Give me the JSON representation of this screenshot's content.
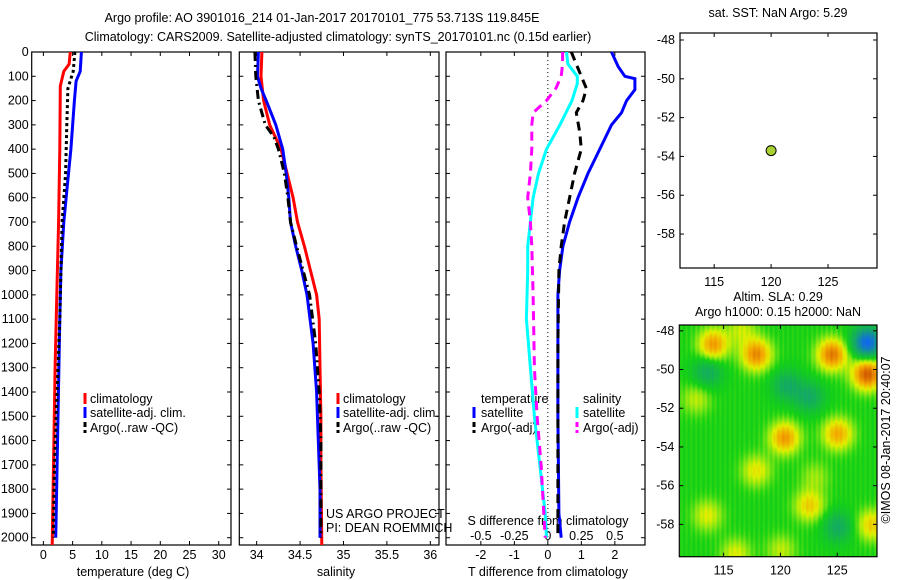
{
  "header": {
    "title_line1": "Argo profile: AO 3901016_214 01-Jan-2017 20170101_775 53.713S 119.845E",
    "title_line2": "Climatology: CARS2009. Satellite-adjusted climatology: synTS_20170101.nc (0.15d earlier)"
  },
  "annotations": {
    "project": "US ARGO PROJECT",
    "pi": "PI: DEAN ROEMMICH",
    "stamp": "©IMOS 08-Jan-2017 20:40:07"
  },
  "colors": {
    "red": "#ff0000",
    "blue": "#0000ff",
    "black": "#000000",
    "cyan": "#00ffff",
    "magenta": "#ff00ff",
    "dot": "#a8d030"
  },
  "chart_data": [
    {
      "type": "line",
      "title": "",
      "xlabel": "temperature (deg C)",
      "ylabel": "",
      "xlim": [
        -2,
        32.1
      ],
      "ylim": [
        0,
        2030
      ],
      "xticks": [
        0,
        5,
        10,
        15,
        20,
        25,
        30
      ],
      "yticks": [
        0,
        100,
        200,
        300,
        400,
        500,
        600,
        700,
        800,
        900,
        1000,
        1100,
        1200,
        1300,
        1400,
        1500,
        1600,
        1700,
        1800,
        1900,
        2000
      ],
      "legend": [
        "climatology",
        "satellite-adj. clim.",
        "Argo(..raw -QC)"
      ],
      "series": [
        {
          "name": "climatology",
          "color": "#ff0000",
          "style": "solid",
          "points": [
            [
              0,
              4.6
            ],
            [
              50,
              4.4
            ],
            [
              80,
              3.5
            ],
            [
              140,
              2.9
            ],
            [
              400,
              2.8
            ],
            [
              700,
              2.6
            ],
            [
              1000,
              2.3
            ],
            [
              1300,
              2.0
            ],
            [
              1600,
              1.8
            ],
            [
              1900,
              1.6
            ],
            [
              2030,
              1.5
            ]
          ]
        },
        {
          "name": "satellite-adj. clim.",
          "color": "#0000ff",
          "style": "solid",
          "points": [
            [
              0,
              6.5
            ],
            [
              80,
              6.3
            ],
            [
              120,
              5.6
            ],
            [
              200,
              5.3
            ],
            [
              400,
              4.7
            ],
            [
              500,
              4.3
            ],
            [
              700,
              3.5
            ],
            [
              900,
              3.0
            ],
            [
              1100,
              2.8
            ],
            [
              1500,
              2.5
            ],
            [
              1900,
              2.2
            ],
            [
              2000,
              2.1
            ]
          ]
        },
        {
          "name": "Argo(..raw -QC)",
          "color": "#000000",
          "style": "dotted",
          "points": [
            [
              0,
              5.4
            ],
            [
              80,
              5.1
            ],
            [
              150,
              4.2
            ],
            [
              300,
              4.0
            ],
            [
              500,
              3.8
            ],
            [
              700,
              3.2
            ],
            [
              900,
              3.0
            ],
            [
              1100,
              2.8
            ],
            [
              1500,
              2.2
            ],
            [
              1700,
              1.9
            ],
            [
              2000,
              1.7
            ]
          ]
        }
      ]
    },
    {
      "type": "line",
      "xlabel": "salinity",
      "xlim": [
        33.8,
        36.1
      ],
      "ylim": [
        0,
        2030
      ],
      "xticks": [
        34,
        34.5,
        35,
        35.5,
        36
      ],
      "legend": [
        "climatology",
        "satellite-adj. clim.",
        "Argo(..raw -QC)"
      ],
      "series": [
        {
          "name": "climatology",
          "color": "#ff0000",
          "style": "solid",
          "points": [
            [
              0,
              34.06
            ],
            [
              100,
              34.05
            ],
            [
              200,
              34.08
            ],
            [
              300,
              34.15
            ],
            [
              400,
              34.28
            ],
            [
              500,
              34.35
            ],
            [
              600,
              34.42
            ],
            [
              700,
              34.47
            ],
            [
              800,
              34.55
            ],
            [
              900,
              34.62
            ],
            [
              1000,
              34.69
            ],
            [
              1100,
              34.72
            ],
            [
              1300,
              34.73
            ],
            [
              1500,
              34.74
            ],
            [
              1700,
              34.74
            ],
            [
              2030,
              34.75
            ]
          ]
        },
        {
          "name": "satellite-adj. clim.",
          "color": "#0000ff",
          "style": "solid",
          "points": [
            [
              0,
              34.02
            ],
            [
              100,
              34.01
            ],
            [
              150,
              34.05
            ],
            [
              200,
              34.11
            ],
            [
              300,
              34.22
            ],
            [
              400,
              34.3
            ],
            [
              500,
              34.34
            ],
            [
              600,
              34.37
            ],
            [
              700,
              34.39
            ],
            [
              800,
              34.45
            ],
            [
              900,
              34.52
            ],
            [
              1000,
              34.58
            ],
            [
              1200,
              34.65
            ],
            [
              1400,
              34.69
            ],
            [
              1600,
              34.71
            ],
            [
              1800,
              34.73
            ],
            [
              2000,
              34.73
            ]
          ]
        },
        {
          "name": "Argo(..raw -QC)",
          "color": "#000000",
          "style": "dashdot",
          "points": [
            [
              0,
              33.98
            ],
            [
              100,
              33.99
            ],
            [
              200,
              34.02
            ],
            [
              300,
              34.1
            ],
            [
              350,
              34.2
            ],
            [
              400,
              34.25
            ],
            [
              500,
              34.32
            ],
            [
              600,
              34.36
            ],
            [
              700,
              34.39
            ],
            [
              800,
              34.46
            ],
            [
              1000,
              34.61
            ],
            [
              1200,
              34.68
            ],
            [
              1400,
              34.72
            ],
            [
              1600,
              34.74
            ],
            [
              1800,
              34.74
            ],
            [
              2000,
              34.74
            ]
          ]
        }
      ]
    },
    {
      "type": "line",
      "xlabel": "T difference from climatology",
      "x2label": "S difference from climatology",
      "xlim": [
        -3.04,
        2.9
      ],
      "x2lim": [
        -0.76,
        0.725
      ],
      "ylim": [
        0,
        2030
      ],
      "xticks": [
        -2,
        -1,
        0,
        1,
        2
      ],
      "x2ticks": [
        -0.5,
        -0.25,
        0,
        0.25,
        0.5
      ],
      "legend_groups": [
        {
          "title": "temperature",
          "items": [
            "satellite",
            "Argo(-adj)"
          ]
        },
        {
          "title": "salinity",
          "items": [
            "satellite",
            "Argo(-adj)"
          ]
        }
      ],
      "series": [
        {
          "name": "temperature satellite",
          "axis": "T",
          "color": "#0000ff",
          "style": "solid",
          "points": [
            [
              0,
              1.9
            ],
            [
              60,
              2.1
            ],
            [
              100,
              2.3
            ],
            [
              110,
              2.6
            ],
            [
              155,
              2.6
            ],
            [
              200,
              2.35
            ],
            [
              250,
              2.2
            ],
            [
              300,
              1.9
            ],
            [
              400,
              1.55
            ],
            [
              500,
              1.2
            ],
            [
              600,
              0.9
            ],
            [
              700,
              0.65
            ],
            [
              800,
              0.45
            ],
            [
              900,
              0.35
            ],
            [
              1000,
              0.3
            ],
            [
              1500,
              0.3
            ],
            [
              1900,
              0.33
            ],
            [
              2000,
              0.4
            ]
          ]
        },
        {
          "name": "temperature Argo(-adj)",
          "axis": "T",
          "color": "#000000",
          "style": "dashed",
          "points": [
            [
              0,
              0.7
            ],
            [
              100,
              1.0
            ],
            [
              150,
              1.15
            ],
            [
              200,
              1.05
            ],
            [
              250,
              0.85
            ],
            [
              330,
              0.95
            ],
            [
              400,
              1.0
            ],
            [
              500,
              0.8
            ],
            [
              600,
              0.65
            ],
            [
              700,
              0.5
            ],
            [
              800,
              0.4
            ],
            [
              900,
              0.33
            ],
            [
              1200,
              0.3
            ],
            [
              1600,
              0.3
            ],
            [
              2000,
              0.3
            ]
          ]
        },
        {
          "name": "salinity satellite",
          "axis": "S",
          "color": "#00ffff",
          "style": "solid",
          "points": [
            [
              0,
              0.14
            ],
            [
              50,
              0.15
            ],
            [
              100,
              0.22
            ],
            [
              130,
              0.22
            ],
            [
              200,
              0.18
            ],
            [
              300,
              0.09
            ],
            [
              400,
              -0.01
            ],
            [
              500,
              -0.07
            ],
            [
              600,
              -0.11
            ],
            [
              700,
              -0.13
            ],
            [
              800,
              -0.15
            ],
            [
              900,
              -0.15
            ],
            [
              1100,
              -0.16
            ],
            [
              1300,
              -0.13
            ],
            [
              1500,
              -0.1
            ],
            [
              1700,
              -0.06
            ],
            [
              1900,
              -0.02
            ],
            [
              2000,
              -0.01
            ]
          ]
        },
        {
          "name": "salinity Argo(-adj)",
          "axis": "S",
          "color": "#ff00ff",
          "style": "dashed",
          "points": [
            [
              0,
              0.11
            ],
            [
              50,
              0.11
            ],
            [
              100,
              0.1
            ],
            [
              150,
              0.06
            ],
            [
              200,
              -0.01
            ],
            [
              250,
              -0.11
            ],
            [
              300,
              -0.12
            ],
            [
              400,
              -0.12
            ],
            [
              500,
              -0.13
            ],
            [
              600,
              -0.15
            ],
            [
              700,
              -0.13
            ],
            [
              800,
              -0.12
            ],
            [
              1000,
              -0.11
            ],
            [
              1300,
              -0.1
            ],
            [
              1500,
              -0.08
            ],
            [
              1700,
              -0.05
            ],
            [
              1900,
              -0.03
            ],
            [
              2000,
              -0.02
            ]
          ]
        }
      ]
    },
    {
      "type": "scatter",
      "title": "sat. SST: NaN Argo: 5.29",
      "xlim": [
        112.0,
        129.3
      ],
      "ylim": [
        -59.75,
        -47.64
      ],
      "xticks": [
        115,
        120,
        125
      ],
      "yticks": [
        -48,
        -50,
        -52,
        -54,
        -56,
        -58
      ],
      "points": [
        {
          "lon": 120,
          "lat": -53.7
        }
      ]
    },
    {
      "type": "heatmap",
      "title_line1": "Altim. SLA: 0.29",
      "title_line2": "Argo h1000: 0.15 h2000: NaN",
      "xlim": [
        111.1,
        128.5
      ],
      "ylim": [
        -59.67,
        -47.7
      ],
      "xticks": [
        115,
        120,
        125
      ],
      "yticks": [
        -48,
        -50,
        -52,
        -54,
        -56,
        -58
      ],
      "anomaly_features": [
        {
          "lon": 114,
          "lat": -48.7,
          "value": 0.5
        },
        {
          "lon": 117.8,
          "lat": -49.2,
          "value": 0.55
        },
        {
          "lon": 124.5,
          "lat": -49.2,
          "value": 0.6
        },
        {
          "lon": 127.6,
          "lat": -50.2,
          "value": 0.7
        },
        {
          "lon": 127.6,
          "lat": -48.6,
          "value": -0.75
        },
        {
          "lon": 113.5,
          "lat": -50.1,
          "value": -0.3
        },
        {
          "lon": 120.5,
          "lat": -50.8,
          "value": -0.3
        },
        {
          "lon": 122.5,
          "lat": -51.4,
          "value": -0.3
        },
        {
          "lon": 120.3,
          "lat": -53.5,
          "value": 0.5
        },
        {
          "lon": 125,
          "lat": -53.3,
          "value": 0.45
        },
        {
          "lon": 117.8,
          "lat": -55.2,
          "value": 0.28
        },
        {
          "lon": 122.5,
          "lat": -57,
          "value": 0.35
        },
        {
          "lon": 125,
          "lat": -58.1,
          "value": -0.3
        },
        {
          "lon": 113.5,
          "lat": -57.5,
          "value": 0.25
        },
        {
          "lon": 128,
          "lat": -58,
          "value": 0.35
        },
        {
          "lon": 116,
          "lat": -59.5,
          "value": 0.25
        },
        {
          "lon": 112.5,
          "lat": -51.5,
          "value": 0.2
        },
        {
          "lon": 120,
          "lat": -59.3,
          "value": 0.2
        },
        {
          "lon": 116.5,
          "lat": -47.9,
          "value": 0.2
        },
        {
          "lon": 123,
          "lat": -55.5,
          "value": 0.15
        }
      ]
    }
  ]
}
